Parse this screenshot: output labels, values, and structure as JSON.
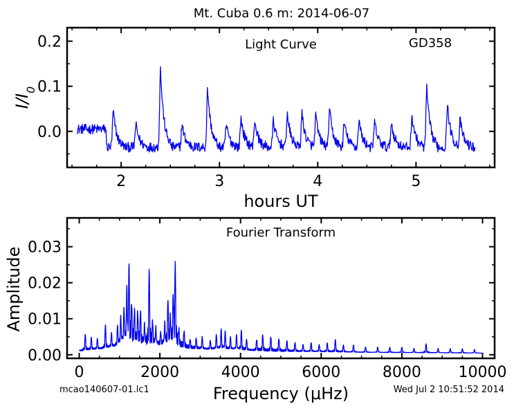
{
  "figure": {
    "title": "Mt. Cuba 0.6 m:  2014-06-07",
    "footer_left": "mcao140607-01.lc1",
    "footer_right": "Wed Jul  2 10:51:52 2014",
    "series_color": "#0000ee"
  },
  "chart_data": [
    {
      "type": "line",
      "title": "",
      "annotation": "Light Curve",
      "object": "GD358",
      "xlabel": "hours UT",
      "ylabel": "I/I0",
      "xlim": [
        1.45,
        5.8
      ],
      "ylim": [
        -0.08,
        0.23
      ],
      "xticks": [
        2,
        3,
        4,
        5
      ],
      "yticks": [
        0.0,
        0.1,
        0.2
      ],
      "ytick_labels": [
        "0.0",
        "0.1",
        "0.2"
      ],
      "grid": false,
      "series": [
        {
          "color": "#0000ee",
          "pulses": [
            {
              "t": 1.92,
              "a": 0.08
            },
            {
              "t": 2.15,
              "a": 0.05
            },
            {
              "t": 2.4,
              "a": 0.175
            },
            {
              "t": 2.62,
              "a": 0.05
            },
            {
              "t": 2.88,
              "a": 0.13
            },
            {
              "t": 3.07,
              "a": 0.05
            },
            {
              "t": 3.22,
              "a": 0.065
            },
            {
              "t": 3.36,
              "a": 0.06
            },
            {
              "t": 3.55,
              "a": 0.06
            },
            {
              "t": 3.69,
              "a": 0.075
            },
            {
              "t": 3.84,
              "a": 0.075
            },
            {
              "t": 3.98,
              "a": 0.07
            },
            {
              "t": 4.12,
              "a": 0.085
            },
            {
              "t": 4.27,
              "a": 0.055
            },
            {
              "t": 4.42,
              "a": 0.06
            },
            {
              "t": 4.58,
              "a": 0.055
            },
            {
              "t": 4.75,
              "a": 0.055
            },
            {
              "t": 4.96,
              "a": 0.07
            },
            {
              "t": 5.11,
              "a": 0.13
            },
            {
              "t": 5.32,
              "a": 0.095
            },
            {
              "t": 5.45,
              "a": 0.06
            }
          ],
          "t_start": 1.55,
          "t_end": 5.6,
          "baseline": -0.035
        }
      ]
    },
    {
      "type": "line",
      "annotation": "Fourier Transform",
      "xlabel": "Frequency (μHz)",
      "ylabel": "Amplitude",
      "xlim": [
        -300,
        10300
      ],
      "ylim": [
        -0.001,
        0.038
      ],
      "xticks": [
        0,
        2000,
        4000,
        6000,
        8000,
        10000
      ],
      "yticks": [
        0.0,
        0.01,
        0.02,
        0.03
      ],
      "ytick_labels": [
        "0.00",
        "0.01",
        "0.02",
        "0.03"
      ],
      "grid": false,
      "series": [
        {
          "color": "#0000ee",
          "peaks": [
            {
              "f": 150,
              "a": 0.0045
            },
            {
              "f": 300,
              "a": 0.0035
            },
            {
              "f": 450,
              "a": 0.003
            },
            {
              "f": 650,
              "a": 0.0065
            },
            {
              "f": 800,
              "a": 0.004
            },
            {
              "f": 950,
              "a": 0.0055
            },
            {
              "f": 1030,
              "a": 0.0075
            },
            {
              "f": 1110,
              "a": 0.009
            },
            {
              "f": 1180,
              "a": 0.0135
            },
            {
              "f": 1235,
              "a": 0.0212
            },
            {
              "f": 1300,
              "a": 0.01
            },
            {
              "f": 1370,
              "a": 0.0085
            },
            {
              "f": 1450,
              "a": 0.0085
            },
            {
              "f": 1520,
              "a": 0.009
            },
            {
              "f": 1620,
              "a": 0.005
            },
            {
              "f": 1735,
              "a": 0.0212
            },
            {
              "f": 1820,
              "a": 0.006
            },
            {
              "f": 1900,
              "a": 0.0045
            },
            {
              "f": 2020,
              "a": 0.0035
            },
            {
              "f": 2120,
              "a": 0.0055
            },
            {
              "f": 2200,
              "a": 0.012
            },
            {
              "f": 2260,
              "a": 0.0065
            },
            {
              "f": 2330,
              "a": 0.0122
            },
            {
              "f": 2380,
              "a": 0.0225
            },
            {
              "f": 2470,
              "a": 0.004
            },
            {
              "f": 2600,
              "a": 0.0045
            },
            {
              "f": 2750,
              "a": 0.0025
            },
            {
              "f": 2900,
              "a": 0.003
            },
            {
              "f": 3050,
              "a": 0.0035
            },
            {
              "f": 3250,
              "a": 0.0025
            },
            {
              "f": 3400,
              "a": 0.004
            },
            {
              "f": 3520,
              "a": 0.0055
            },
            {
              "f": 3620,
              "a": 0.005
            },
            {
              "f": 3750,
              "a": 0.0035
            },
            {
              "f": 3900,
              "a": 0.004
            },
            {
              "f": 4020,
              "a": 0.0055
            },
            {
              "f": 4150,
              "a": 0.003
            },
            {
              "f": 4400,
              "a": 0.003
            },
            {
              "f": 4550,
              "a": 0.0045
            },
            {
              "f": 4750,
              "a": 0.004
            },
            {
              "f": 4950,
              "a": 0.0035
            },
            {
              "f": 5150,
              "a": 0.003
            },
            {
              "f": 5350,
              "a": 0.0025
            },
            {
              "f": 5550,
              "a": 0.002
            },
            {
              "f": 5750,
              "a": 0.0025
            },
            {
              "f": 5950,
              "a": 0.002
            },
            {
              "f": 6150,
              "a": 0.0025
            },
            {
              "f": 6350,
              "a": 0.0035
            },
            {
              "f": 6550,
              "a": 0.002
            },
            {
              "f": 6800,
              "a": 0.002
            },
            {
              "f": 7100,
              "a": 0.0015
            },
            {
              "f": 7400,
              "a": 0.0015
            },
            {
              "f": 7700,
              "a": 0.0015
            },
            {
              "f": 8000,
              "a": 0.0015
            },
            {
              "f": 8300,
              "a": 0.0012
            },
            {
              "f": 8600,
              "a": 0.0025
            },
            {
              "f": 8900,
              "a": 0.0012
            },
            {
              "f": 9200,
              "a": 0.0012
            },
            {
              "f": 9500,
              "a": 0.0012
            },
            {
              "f": 9800,
              "a": 0.001
            }
          ],
          "f_start": 0,
          "f_end": 10000
        }
      ]
    }
  ]
}
